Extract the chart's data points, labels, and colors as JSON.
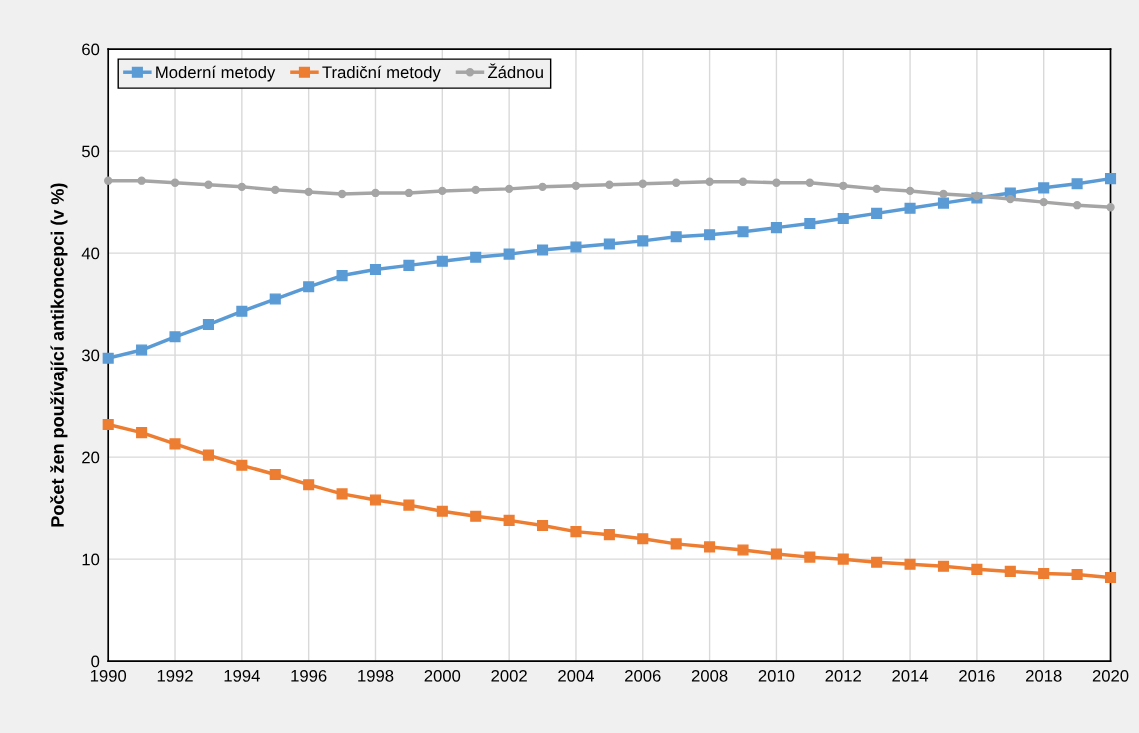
{
  "chart_data": {
    "type": "line",
    "ylabel": "Počet žen používající antikoncepci (v %)",
    "x": [
      1990,
      1991,
      1992,
      1993,
      1994,
      1995,
      1996,
      1997,
      1998,
      1999,
      2000,
      2001,
      2002,
      2003,
      2004,
      2005,
      2006,
      2007,
      2008,
      2009,
      2010,
      2011,
      2012,
      2013,
      2014,
      2015,
      2016,
      2017,
      2018,
      2019,
      2020
    ],
    "series": [
      {
        "name": "Moderní metody",
        "color": "#5b9bd5",
        "marker": "square",
        "values": [
          29.7,
          30.5,
          31.8,
          33.0,
          34.3,
          35.5,
          36.7,
          37.8,
          38.4,
          38.8,
          39.2,
          39.6,
          39.9,
          40.3,
          40.6,
          40.9,
          41.2,
          41.6,
          41.8,
          42.1,
          42.5,
          42.9,
          43.4,
          43.9,
          44.4,
          44.9,
          45.4,
          45.9,
          46.4,
          46.8,
          47.3
        ]
      },
      {
        "name": "Tradiční metody",
        "color": "#ed7d31",
        "marker": "square",
        "values": [
          23.2,
          22.4,
          21.3,
          20.2,
          19.2,
          18.3,
          17.3,
          16.4,
          15.8,
          15.3,
          14.7,
          14.2,
          13.8,
          13.3,
          12.7,
          12.4,
          12.0,
          11.5,
          11.2,
          10.9,
          10.5,
          10.2,
          10.0,
          9.7,
          9.5,
          9.3,
          9.0,
          8.8,
          8.6,
          8.5,
          8.2
        ]
      },
      {
        "name": "Žádnou",
        "color": "#a5a5a5",
        "marker": "circle",
        "values": [
          47.1,
          47.1,
          46.9,
          46.7,
          46.5,
          46.2,
          46.0,
          45.8,
          45.9,
          45.9,
          46.1,
          46.2,
          46.3,
          46.5,
          46.6,
          46.7,
          46.8,
          46.9,
          47.0,
          47.0,
          46.9,
          46.9,
          46.6,
          46.3,
          46.1,
          45.8,
          45.6,
          45.3,
          45.0,
          44.7,
          44.5
        ]
      }
    ],
    "xlim": [
      1990,
      2020
    ],
    "xticks": [
      1990,
      1992,
      1994,
      1996,
      1998,
      2000,
      2002,
      2004,
      2006,
      2008,
      2010,
      2012,
      2014,
      2016,
      2018,
      2020
    ],
    "ylim": [
      0,
      60
    ],
    "yticks": [
      0,
      10,
      20,
      30,
      40,
      50,
      60
    ],
    "grid": true,
    "legend": "top left",
    "line_style": "solid"
  }
}
